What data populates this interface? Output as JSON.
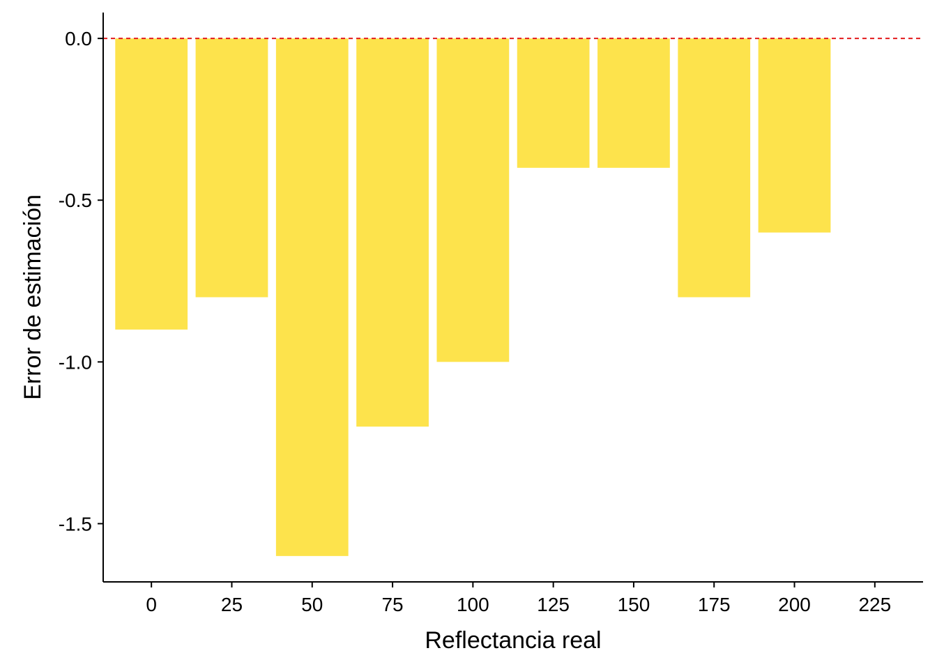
{
  "chart_data": {
    "type": "bar",
    "title": "",
    "xlabel": "Reflectancia real",
    "ylabel": "Error de estimación",
    "x": [
      0,
      25,
      50,
      75,
      100,
      125,
      150,
      175,
      200
    ],
    "values": [
      -0.9,
      -0.8,
      -1.6,
      -1.2,
      -1.0,
      -0.4,
      -0.4,
      -0.8,
      -0.6
    ],
    "bar_width": 22.5,
    "xlim": [
      -15,
      240
    ],
    "ylim": [
      -1.68,
      0.08
    ],
    "x_ticks": [
      "0",
      "25",
      "50",
      "75",
      "100",
      "125",
      "150",
      "175",
      "200",
      "225"
    ],
    "x_tick_values": [
      0,
      25,
      50,
      75,
      100,
      125,
      150,
      175,
      200,
      225
    ],
    "y_ticks": [
      "0.0",
      "-0.5",
      "-1.0",
      "-1.5"
    ],
    "y_tick_values": [
      0,
      -0.5,
      -1.0,
      -1.5
    ],
    "reference_line": {
      "y": 0,
      "style": "dashed",
      "color": "#e31a1c"
    },
    "bar_color": "#fde34c",
    "grid": false,
    "legend": "none"
  }
}
